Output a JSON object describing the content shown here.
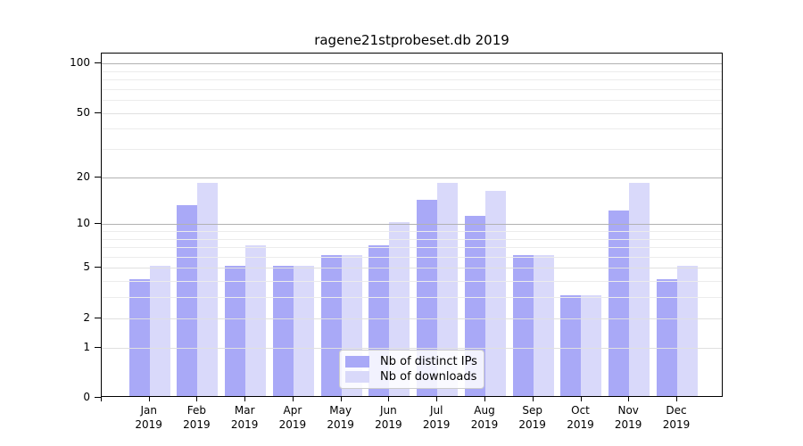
{
  "chart_data": {
    "type": "bar",
    "title": "ragene21stprobeset.db 2019",
    "year": "2019",
    "categories": [
      "Jan",
      "Feb",
      "Mar",
      "Apr",
      "May",
      "Jun",
      "Jul",
      "Aug",
      "Sep",
      "Oct",
      "Nov",
      "Dec"
    ],
    "series": [
      {
        "name": "Nb of distinct IPs",
        "color": "#a9a9f7",
        "values": [
          4,
          13,
          5,
          5,
          6,
          7,
          14,
          11,
          6,
          3,
          12,
          4
        ]
      },
      {
        "name": "Nb of downloads",
        "color": "#d9d9fa",
        "values": [
          5,
          18,
          7,
          5,
          6,
          10,
          18,
          16,
          6,
          3,
          18,
          5
        ]
      }
    ],
    "y_scale": "log1p",
    "ylim": [
      0,
      100
    ],
    "y_ticks": [
      0,
      1,
      2,
      5,
      10,
      20,
      50,
      100
    ],
    "y_gridlines_major": [
      1,
      2,
      5,
      50
    ],
    "y_gridlines_dark": [
      10,
      20,
      100
    ],
    "y_gridlines_minor": [
      3,
      4,
      6,
      7,
      8,
      9,
      30,
      40,
      60,
      70,
      80,
      90
    ],
    "grid": "on",
    "legend_position": "bottom-center",
    "xlabel": "",
    "ylabel": ""
  }
}
